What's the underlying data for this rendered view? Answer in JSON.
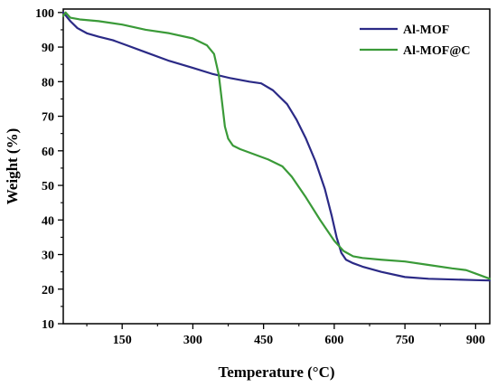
{
  "chart_data": {
    "type": "line",
    "xlabel": "Temperature (°C)",
    "ylabel": "Weight (%)",
    "xlim": [
      25,
      930
    ],
    "ylim": [
      10,
      101
    ],
    "x_ticks": [
      150,
      300,
      450,
      600,
      750,
      900
    ],
    "y_ticks": [
      10,
      20,
      30,
      40,
      50,
      60,
      70,
      80,
      90,
      100
    ],
    "grid": false,
    "legend_position": "top-right",
    "series": [
      {
        "name": "Al-MOF",
        "color": "#2b2a86",
        "x": [
          25,
          40,
          55,
          75,
          100,
          130,
          160,
          200,
          250,
          300,
          340,
          380,
          420,
          445,
          470,
          500,
          520,
          540,
          560,
          580,
          595,
          605,
          615,
          625,
          640,
          660,
          700,
          750,
          800,
          850,
          900,
          930
        ],
        "y": [
          100,
          97.5,
          95.5,
          94,
          93,
          92,
          90.5,
          88.5,
          86,
          84,
          82.3,
          81,
          80,
          79.5,
          77.5,
          73.5,
          69,
          63.5,
          57,
          49,
          41,
          35,
          30.5,
          28.5,
          27.5,
          26.5,
          25,
          23.5,
          23,
          22.8,
          22.6,
          22.5
        ]
      },
      {
        "name": "Al-MOF@C",
        "color": "#3a9a38",
        "x": [
          25,
          30,
          40,
          60,
          100,
          150,
          200,
          250,
          300,
          330,
          345,
          355,
          362,
          368,
          375,
          385,
          400,
          430,
          460,
          490,
          510,
          540,
          570,
          600,
          620,
          640,
          660,
          700,
          750,
          800,
          850,
          880,
          900,
          930
        ],
        "y": [
          99,
          100,
          98.5,
          98,
          97.5,
          96.5,
          95,
          94,
          92.5,
          90.5,
          88,
          82,
          74,
          67,
          63.5,
          61.5,
          60.5,
          59,
          57.5,
          55.5,
          52.5,
          46.5,
          40,
          34,
          31,
          29.5,
          29,
          28.5,
          28,
          27,
          26,
          25.5,
          24.5,
          23
        ]
      }
    ]
  }
}
